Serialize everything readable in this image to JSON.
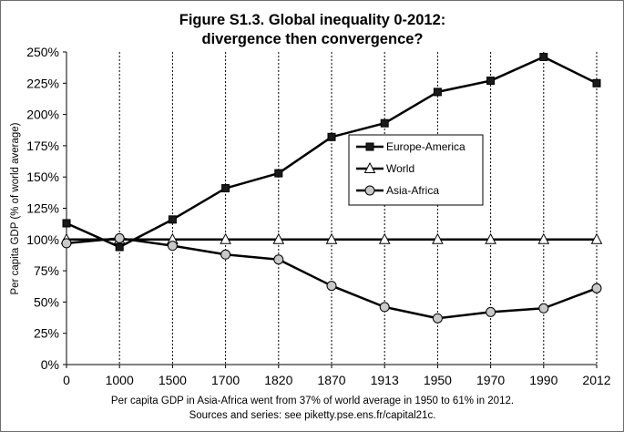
{
  "chart_data": {
    "type": "line",
    "title_line1": "Figure S1.3. Global inequality 0-2012:",
    "title_line2": "divergence then convergence?",
    "ylabel": "Per capita GDP (% of world average)",
    "categories": [
      "0",
      "1000",
      "1500",
      "1700",
      "1820",
      "1870",
      "1913",
      "1950",
      "1970",
      "1990",
      "2012"
    ],
    "ylim": [
      0,
      250
    ],
    "yticks": [
      0,
      25,
      50,
      75,
      100,
      125,
      150,
      175,
      200,
      225,
      250
    ],
    "ytick_labels": [
      "0%",
      "25%",
      "50%",
      "75%",
      "100%",
      "125%",
      "150%",
      "175%",
      "200%",
      "225%",
      "250%"
    ],
    "series": [
      {
        "name": "Europe-America",
        "marker": "square",
        "color": "#000000",
        "values": [
          113,
          94,
          116,
          141,
          153,
          182,
          193,
          218,
          227,
          246,
          225
        ]
      },
      {
        "name": "World",
        "marker": "triangle",
        "color": "#000000",
        "values": [
          100,
          100,
          100,
          100,
          100,
          100,
          100,
          100,
          100,
          100,
          100
        ]
      },
      {
        "name": "Asia-Africa",
        "marker": "circle",
        "color": "#000000",
        "values": [
          97,
          101,
          95,
          88,
          84,
          63,
          46,
          37,
          42,
          45,
          61
        ]
      }
    ],
    "note_line1": "Per capita GDP in Asia-Africa went from 37% of world average in 1950 to 61% in 2012.",
    "note_line2": "Sources and series: see piketty.pse.ens.fr/capital21c.",
    "grid": "vertical dashed",
    "legend_position": "center-right"
  }
}
